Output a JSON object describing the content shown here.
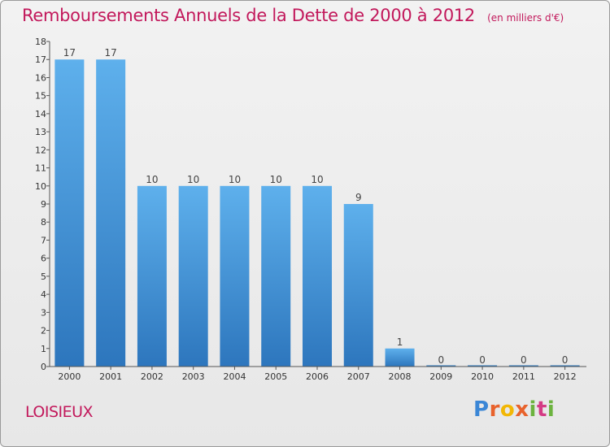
{
  "title": "Remboursements Annuels de la Dette de 2000 à 2012",
  "unit_note": "(en milliers d'€)",
  "commune": "LOISIEUX",
  "logo": {
    "text": "Proxiti"
  },
  "colors": {
    "bar": "#3f90d4",
    "title": "#c2185b",
    "axis": "#555555"
  },
  "chart_data": {
    "type": "bar",
    "title": "Remboursements Annuels de la Dette de 2000 à 2012",
    "subtitle": "(en milliers d'€)",
    "categories": [
      "2000",
      "2001",
      "2002",
      "2003",
      "2004",
      "2005",
      "2006",
      "2007",
      "2008",
      "2009",
      "2010",
      "2011",
      "2012"
    ],
    "values": [
      17,
      17,
      10,
      10,
      10,
      10,
      10,
      9,
      1,
      0,
      0,
      0,
      0
    ],
    "ylim": [
      0,
      18
    ],
    "yticks": [
      0,
      1,
      2,
      3,
      4,
      5,
      6,
      7,
      8,
      9,
      10,
      11,
      12,
      13,
      14,
      15,
      16,
      17,
      18
    ],
    "grid": false
  }
}
